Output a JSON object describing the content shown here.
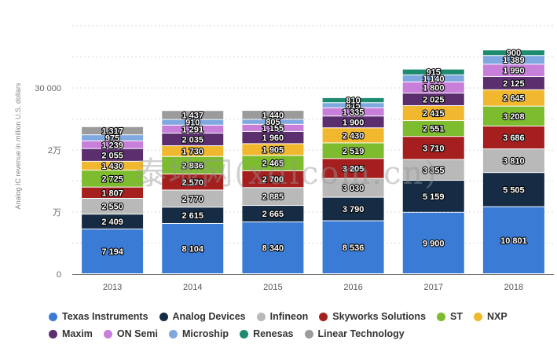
{
  "chart_data": {
    "type": "bar",
    "stacked": true,
    "categories": [
      "2013",
      "2014",
      "2015",
      "2016",
      "2017",
      "2018"
    ],
    "ylabel": "Analog IC revenue in million U.S. dollars",
    "yticks": [
      {
        "value": 0,
        "label": "0"
      },
      {
        "value": 10000,
        "label": "万"
      },
      {
        "value": 20000,
        "label": "2万"
      },
      {
        "value": 30000,
        "label": "30 000"
      }
    ],
    "ylim": [
      0,
      40000
    ],
    "grid": true,
    "legend_position": "bottom",
    "series": [
      {
        "name": "Texas Instruments",
        "color": "#3a7bd5",
        "values": [
          7194,
          8104,
          8340,
          8536,
          9900,
          10801
        ],
        "labels": [
          "7 194",
          "8 104",
          "8 340",
          "8 536",
          "9 900",
          "10 801"
        ]
      },
      {
        "name": "Analog Devices",
        "color": "#162c45",
        "values": [
          2409,
          2615,
          2665,
          3790,
          5159,
          5505
        ],
        "labels": [
          "2 409",
          "2 615",
          "2 665",
          "3 790",
          "5 159",
          "5 505"
        ]
      },
      {
        "name": "Infineon",
        "color": "#b9b9b9",
        "values": [
          2550,
          2770,
          2885,
          3030,
          3355,
          3810
        ],
        "labels": [
          "2 550",
          "2 770",
          "2 885",
          "3 030",
          "3 355",
          "3 810"
        ]
      },
      {
        "name": "Skyworks Solutions",
        "color": "#a51f1f",
        "values": [
          1807,
          2570,
          2700,
          3205,
          3710,
          3686
        ],
        "labels": [
          "1 807",
          "2 570",
          "2 700",
          "3 205",
          "3 710",
          "3 686"
        ]
      },
      {
        "name": "ST",
        "color": "#7dbb2f",
        "values": [
          2725,
          2836,
          2465,
          2519,
          2551,
          3208
        ],
        "labels": [
          "2 725",
          "2 836",
          "2 465",
          "2 519",
          "2 551",
          "3 208"
        ]
      },
      {
        "name": "NXP",
        "color": "#f1b82f",
        "values": [
          1430,
          1730,
          1905,
          2430,
          2415,
          2645
        ],
        "labels": [
          "1 430",
          "1 730",
          "1 905",
          "2 430",
          "2 415",
          "2 645"
        ]
      },
      {
        "name": "Maxim",
        "color": "#5b2f6e",
        "values": [
          2055,
          2035,
          1960,
          1900,
          2025,
          2125
        ],
        "labels": [
          "2 055",
          "2 035",
          "1 960",
          "1 900",
          "2 025",
          "2 125"
        ]
      },
      {
        "name": "ON Semi",
        "color": "#c77fd9",
        "values": [
          1239,
          1291,
          1155,
          1335,
          1800,
          1990
        ],
        "labels": [
          "1 239",
          "1 291",
          "1 155",
          "1 335",
          "1 800",
          "1 990"
        ]
      },
      {
        "name": "Microship",
        "color": "#7fa8e0",
        "values": [
          975,
          910,
          805,
          815,
          1140,
          1389
        ],
        "labels": [
          "975",
          "910",
          "805",
          "815",
          "1 140",
          "1 389"
        ]
      },
      {
        "name": "Renesas",
        "color": "#1c8b6f",
        "values": [
          0,
          0,
          0,
          810,
          915,
          900
        ],
        "labels": [
          "",
          "",
          "",
          "810",
          "915",
          "900"
        ]
      },
      {
        "name": "Linear Technology",
        "color": "#9b9b9b",
        "values": [
          1317,
          1437,
          1440,
          0,
          0,
          0
        ],
        "labels": [
          "1 317",
          "1 437",
          "1 440",
          "",
          "",
          ""
        ]
      }
    ]
  },
  "watermark": "泰地网(xdicom.cn)"
}
